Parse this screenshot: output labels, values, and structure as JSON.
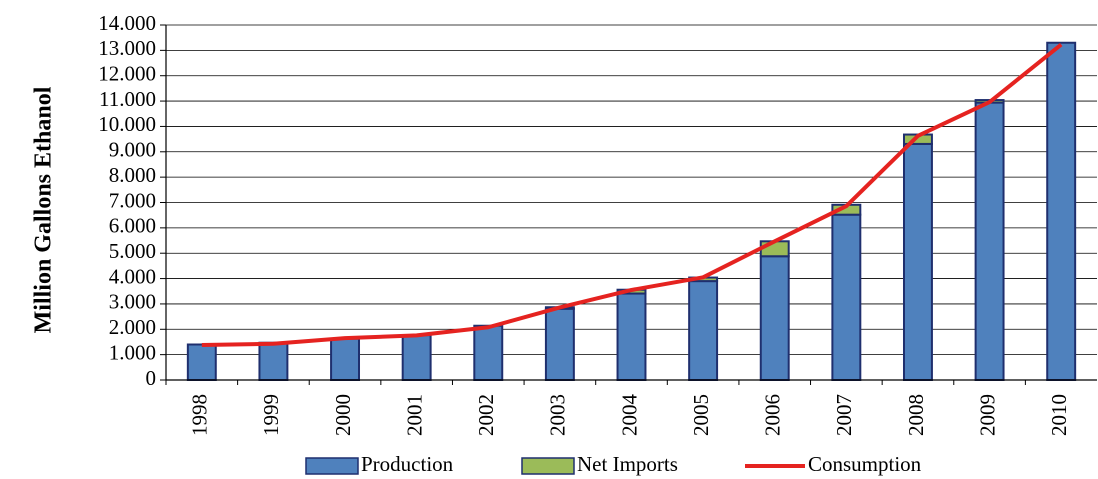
{
  "chart_data": {
    "type": "bar",
    "stacked": true,
    "title": "",
    "xlabel": "",
    "ylabel": "Million Gallons Ethanol",
    "ylim": [
      0,
      14000
    ],
    "ytick_step": 1000,
    "ytick_labels": [
      "0",
      "1.000",
      "2.000",
      "3.000",
      "4.000",
      "5.000",
      "6.000",
      "7.000",
      "8.000",
      "9.000",
      "10.000",
      "11.000",
      "12.000",
      "13.000",
      "14.000"
    ],
    "grid": true,
    "legend_position": "bottom",
    "categories": [
      "1998",
      "1999",
      "2000",
      "2001",
      "2002",
      "2003",
      "2004",
      "2005",
      "2006",
      "2007",
      "2008",
      "2009",
      "2010"
    ],
    "series": [
      {
        "name": "Production",
        "kind": "bar",
        "color": "#4f81bd",
        "values": [
          1400,
          1470,
          1630,
          1770,
          2140,
          2810,
          3410,
          3900,
          4880,
          6520,
          9310,
          10940,
          13300
        ]
      },
      {
        "name": "Net Imports",
        "kind": "bar",
        "color": "#9bbb59",
        "values": [
          0,
          0,
          0,
          0,
          0,
          60,
          150,
          140,
          590,
          390,
          370,
          100,
          0
        ]
      },
      {
        "name": "Consumption",
        "kind": "line",
        "color": "#e52320",
        "values": [
          1380,
          1430,
          1650,
          1760,
          2080,
          2860,
          3550,
          4050,
          5470,
          6860,
          9630,
          10960,
          13230
        ]
      }
    ]
  }
}
